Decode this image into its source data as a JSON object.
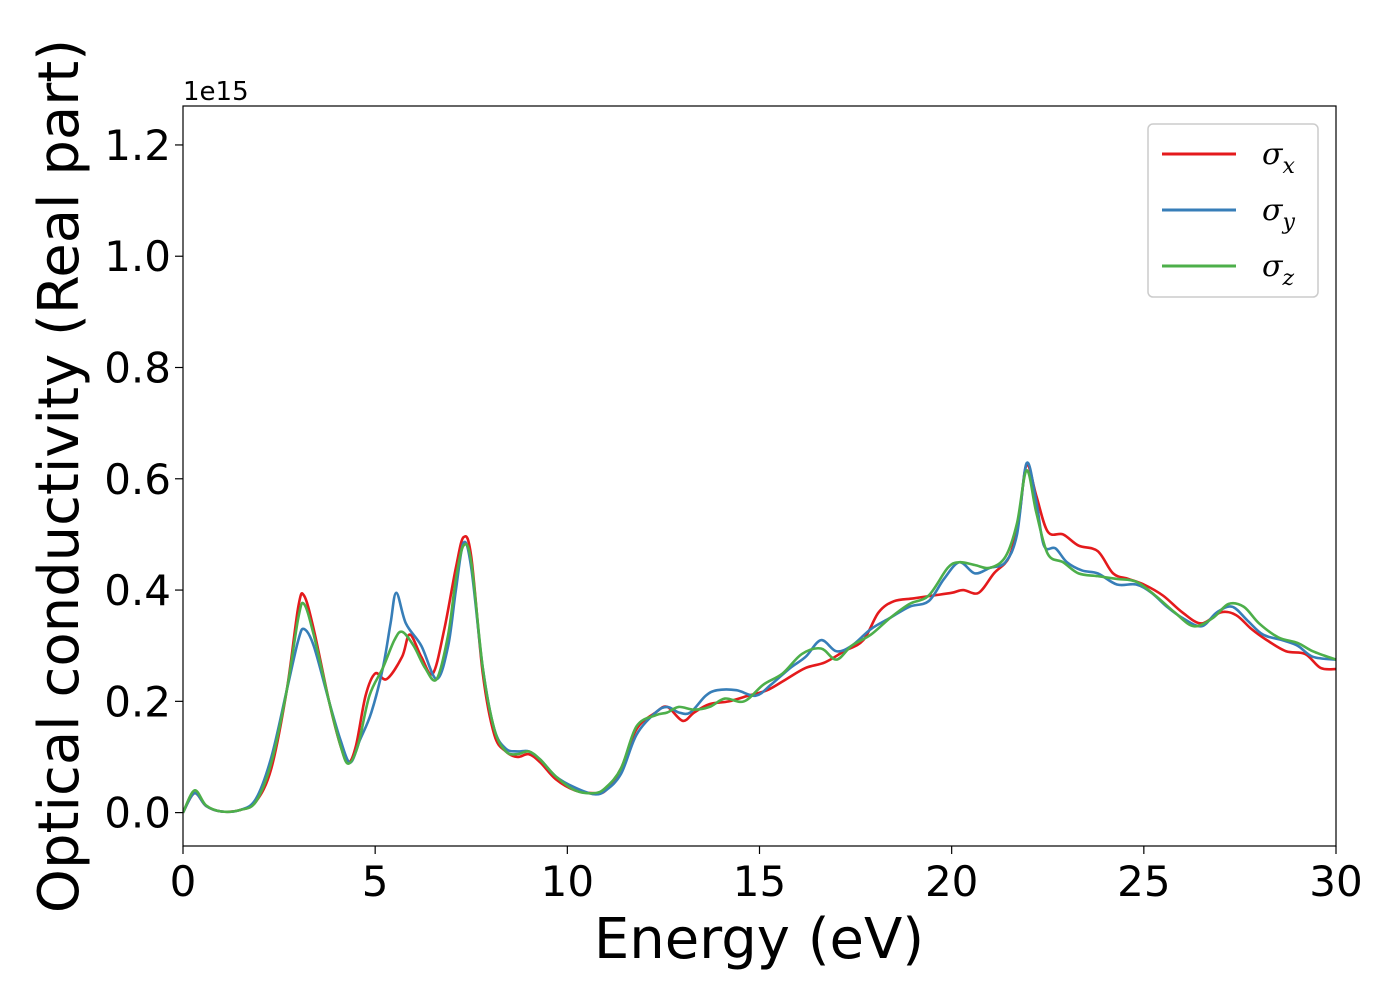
{
  "chart_data": {
    "type": "line",
    "xlabel": "Energy (eV)",
    "ylabel": "Optical conductivity (Real part)",
    "y_offset_label": "1e15",
    "xlim": [
      0,
      30
    ],
    "ylim": [
      -0.06,
      1.27
    ],
    "y_scale": 1000000000000000.0,
    "xticks": [
      0,
      5,
      10,
      15,
      20,
      25,
      30
    ],
    "xtick_labels": [
      "0",
      "5",
      "10",
      "15",
      "20",
      "25",
      "30"
    ],
    "yticks": [
      0.0,
      0.2,
      0.4,
      0.6,
      0.8,
      1.0,
      1.2
    ],
    "ytick_labels": [
      "0.0",
      "0.2",
      "0.4",
      "0.6",
      "0.8",
      "1.0",
      "1.2"
    ],
    "grid": false,
    "legend_position": "top-right",
    "series": [
      {
        "name": "σx",
        "label_main": "σ",
        "label_sub": "x",
        "color": "#e41a1c",
        "points": [
          [
            0,
            0
          ],
          [
            0.3,
            0.035
          ],
          [
            0.6,
            0.012
          ],
          [
            1,
            0.002
          ],
          [
            1.5,
            0.005
          ],
          [
            1.9,
            0.02
          ],
          [
            2.3,
            0.08
          ],
          [
            2.7,
            0.22
          ],
          [
            3.0,
            0.37
          ],
          [
            3.15,
            0.39
          ],
          [
            3.4,
            0.33
          ],
          [
            3.8,
            0.2
          ],
          [
            4.1,
            0.12
          ],
          [
            4.3,
            0.09
          ],
          [
            4.5,
            0.12
          ],
          [
            4.75,
            0.21
          ],
          [
            5.0,
            0.25
          ],
          [
            5.3,
            0.24
          ],
          [
            5.7,
            0.28
          ],
          [
            5.9,
            0.32
          ],
          [
            6.2,
            0.28
          ],
          [
            6.5,
            0.25
          ],
          [
            6.8,
            0.33
          ],
          [
            7.1,
            0.44
          ],
          [
            7.3,
            0.495
          ],
          [
            7.5,
            0.46
          ],
          [
            7.8,
            0.25
          ],
          [
            8.1,
            0.14
          ],
          [
            8.4,
            0.11
          ],
          [
            8.7,
            0.1
          ],
          [
            9.0,
            0.105
          ],
          [
            9.3,
            0.09
          ],
          [
            9.7,
            0.06
          ],
          [
            10.2,
            0.04
          ],
          [
            10.7,
            0.035
          ],
          [
            11.0,
            0.04
          ],
          [
            11.4,
            0.08
          ],
          [
            11.8,
            0.15
          ],
          [
            12.3,
            0.18
          ],
          [
            12.6,
            0.19
          ],
          [
            13.0,
            0.165
          ],
          [
            13.3,
            0.18
          ],
          [
            13.7,
            0.195
          ],
          [
            14.2,
            0.2
          ],
          [
            14.7,
            0.21
          ],
          [
            15.2,
            0.22
          ],
          [
            15.7,
            0.24
          ],
          [
            16.2,
            0.26
          ],
          [
            16.7,
            0.27
          ],
          [
            17.2,
            0.29
          ],
          [
            17.7,
            0.31
          ],
          [
            18.1,
            0.36
          ],
          [
            18.5,
            0.38
          ],
          [
            19.0,
            0.385
          ],
          [
            19.5,
            0.39
          ],
          [
            20.0,
            0.395
          ],
          [
            20.3,
            0.4
          ],
          [
            20.7,
            0.395
          ],
          [
            21.1,
            0.43
          ],
          [
            21.5,
            0.46
          ],
          [
            21.75,
            0.53
          ],
          [
            21.95,
            0.625
          ],
          [
            22.2,
            0.57
          ],
          [
            22.5,
            0.505
          ],
          [
            22.9,
            0.5
          ],
          [
            23.3,
            0.48
          ],
          [
            23.8,
            0.47
          ],
          [
            24.2,
            0.43
          ],
          [
            24.6,
            0.42
          ],
          [
            25.0,
            0.41
          ],
          [
            25.5,
            0.39
          ],
          [
            26.0,
            0.36
          ],
          [
            26.5,
            0.34
          ],
          [
            27.0,
            0.36
          ],
          [
            27.4,
            0.355
          ],
          [
            27.8,
            0.33
          ],
          [
            28.2,
            0.31
          ],
          [
            28.7,
            0.29
          ],
          [
            29.2,
            0.285
          ],
          [
            29.6,
            0.26
          ],
          [
            30,
            0.258
          ]
        ]
      },
      {
        "name": "σy",
        "label_main": "σ",
        "label_sub": "y",
        "color": "#377eb8",
        "points": [
          [
            0,
            0
          ],
          [
            0.3,
            0.035
          ],
          [
            0.6,
            0.012
          ],
          [
            1,
            0.002
          ],
          [
            1.5,
            0.005
          ],
          [
            1.9,
            0.025
          ],
          [
            2.3,
            0.1
          ],
          [
            2.7,
            0.22
          ],
          [
            3.0,
            0.31
          ],
          [
            3.15,
            0.33
          ],
          [
            3.4,
            0.3
          ],
          [
            3.8,
            0.2
          ],
          [
            4.1,
            0.13
          ],
          [
            4.35,
            0.09
          ],
          [
            4.6,
            0.13
          ],
          [
            4.9,
            0.18
          ],
          [
            5.2,
            0.26
          ],
          [
            5.4,
            0.34
          ],
          [
            5.55,
            0.395
          ],
          [
            5.8,
            0.34
          ],
          [
            6.2,
            0.3
          ],
          [
            6.6,
            0.24
          ],
          [
            6.9,
            0.3
          ],
          [
            7.1,
            0.4
          ],
          [
            7.3,
            0.485
          ],
          [
            7.5,
            0.44
          ],
          [
            7.8,
            0.26
          ],
          [
            8.1,
            0.15
          ],
          [
            8.4,
            0.115
          ],
          [
            8.7,
            0.11
          ],
          [
            9.0,
            0.11
          ],
          [
            9.3,
            0.095
          ],
          [
            9.7,
            0.065
          ],
          [
            10.2,
            0.045
          ],
          [
            10.7,
            0.033
          ],
          [
            11.0,
            0.04
          ],
          [
            11.4,
            0.07
          ],
          [
            11.8,
            0.14
          ],
          [
            12.3,
            0.18
          ],
          [
            12.6,
            0.19
          ],
          [
            12.9,
            0.18
          ],
          [
            13.2,
            0.18
          ],
          [
            13.6,
            0.21
          ],
          [
            13.9,
            0.22
          ],
          [
            14.4,
            0.22
          ],
          [
            14.9,
            0.21
          ],
          [
            15.3,
            0.23
          ],
          [
            15.8,
            0.26
          ],
          [
            16.2,
            0.28
          ],
          [
            16.6,
            0.31
          ],
          [
            17.0,
            0.29
          ],
          [
            17.4,
            0.3
          ],
          [
            17.9,
            0.33
          ],
          [
            18.4,
            0.35
          ],
          [
            18.9,
            0.37
          ],
          [
            19.4,
            0.38
          ],
          [
            19.8,
            0.42
          ],
          [
            20.2,
            0.45
          ],
          [
            20.6,
            0.43
          ],
          [
            21.0,
            0.44
          ],
          [
            21.4,
            0.45
          ],
          [
            21.7,
            0.5
          ],
          [
            21.95,
            0.628
          ],
          [
            22.2,
            0.56
          ],
          [
            22.4,
            0.48
          ],
          [
            22.7,
            0.475
          ],
          [
            23.0,
            0.45
          ],
          [
            23.4,
            0.435
          ],
          [
            23.8,
            0.43
          ],
          [
            24.3,
            0.41
          ],
          [
            24.8,
            0.41
          ],
          [
            25.2,
            0.395
          ],
          [
            25.6,
            0.37
          ],
          [
            26.0,
            0.35
          ],
          [
            26.5,
            0.335
          ],
          [
            26.9,
            0.36
          ],
          [
            27.3,
            0.37
          ],
          [
            27.7,
            0.345
          ],
          [
            28.1,
            0.32
          ],
          [
            28.6,
            0.31
          ],
          [
            29.0,
            0.3
          ],
          [
            29.4,
            0.28
          ],
          [
            30,
            0.275
          ]
        ]
      },
      {
        "name": "σz",
        "label_main": "σ",
        "label_sub": "z",
        "color": "#4daf4a",
        "points": [
          [
            0,
            0
          ],
          [
            0.3,
            0.04
          ],
          [
            0.6,
            0.013
          ],
          [
            1,
            0.002
          ],
          [
            1.5,
            0.005
          ],
          [
            1.9,
            0.02
          ],
          [
            2.3,
            0.09
          ],
          [
            2.7,
            0.22
          ],
          [
            3.0,
            0.35
          ],
          [
            3.15,
            0.375
          ],
          [
            3.4,
            0.32
          ],
          [
            3.8,
            0.2
          ],
          [
            4.1,
            0.12
          ],
          [
            4.3,
            0.088
          ],
          [
            4.55,
            0.12
          ],
          [
            4.85,
            0.21
          ],
          [
            5.2,
            0.26
          ],
          [
            5.5,
            0.31
          ],
          [
            5.7,
            0.325
          ],
          [
            6.0,
            0.3
          ],
          [
            6.3,
            0.26
          ],
          [
            6.6,
            0.24
          ],
          [
            6.9,
            0.32
          ],
          [
            7.1,
            0.42
          ],
          [
            7.3,
            0.48
          ],
          [
            7.5,
            0.45
          ],
          [
            7.8,
            0.26
          ],
          [
            8.1,
            0.15
          ],
          [
            8.4,
            0.11
          ],
          [
            8.7,
            0.105
          ],
          [
            9.0,
            0.11
          ],
          [
            9.3,
            0.095
          ],
          [
            9.7,
            0.065
          ],
          [
            10.2,
            0.04
          ],
          [
            10.7,
            0.035
          ],
          [
            11.0,
            0.045
          ],
          [
            11.4,
            0.08
          ],
          [
            11.8,
            0.155
          ],
          [
            12.3,
            0.175
          ],
          [
            12.6,
            0.18
          ],
          [
            12.9,
            0.19
          ],
          [
            13.3,
            0.185
          ],
          [
            13.7,
            0.19
          ],
          [
            14.1,
            0.205
          ],
          [
            14.6,
            0.2
          ],
          [
            15.1,
            0.23
          ],
          [
            15.6,
            0.25
          ],
          [
            16.1,
            0.285
          ],
          [
            16.6,
            0.295
          ],
          [
            17.0,
            0.275
          ],
          [
            17.4,
            0.3
          ],
          [
            17.9,
            0.32
          ],
          [
            18.4,
            0.35
          ],
          [
            18.9,
            0.375
          ],
          [
            19.4,
            0.39
          ],
          [
            19.9,
            0.44
          ],
          [
            20.2,
            0.45
          ],
          [
            20.6,
            0.445
          ],
          [
            21.0,
            0.44
          ],
          [
            21.4,
            0.46
          ],
          [
            21.7,
            0.52
          ],
          [
            21.95,
            0.615
          ],
          [
            22.2,
            0.54
          ],
          [
            22.5,
            0.465
          ],
          [
            22.9,
            0.45
          ],
          [
            23.3,
            0.43
          ],
          [
            23.8,
            0.425
          ],
          [
            24.3,
            0.42
          ],
          [
            24.8,
            0.415
          ],
          [
            25.3,
            0.39
          ],
          [
            25.8,
            0.36
          ],
          [
            26.3,
            0.335
          ],
          [
            26.8,
            0.35
          ],
          [
            27.2,
            0.375
          ],
          [
            27.6,
            0.37
          ],
          [
            28.0,
            0.34
          ],
          [
            28.5,
            0.315
          ],
          [
            29.0,
            0.305
          ],
          [
            29.4,
            0.29
          ],
          [
            30,
            0.275
          ]
        ]
      }
    ]
  }
}
